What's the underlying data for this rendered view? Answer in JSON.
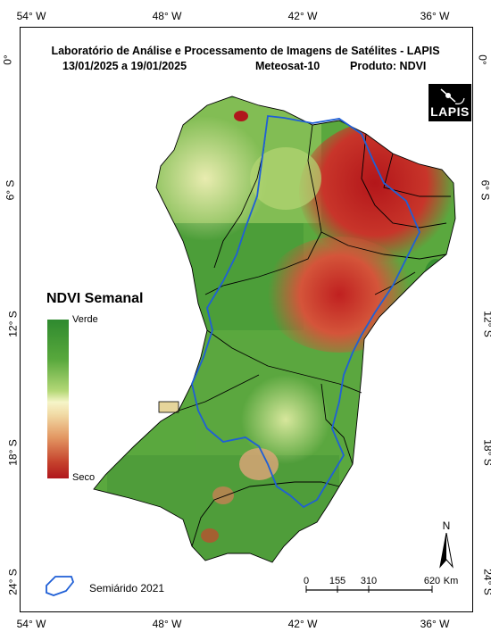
{
  "header": {
    "title_line1": "Laboratório de Análise e Processamento de Imagens de Satélites - LAPIS",
    "date_range": "13/01/2025  a  19/01/2025",
    "satellite": "Meteosat-10",
    "product": "Produto: NDVI"
  },
  "logo": {
    "text": "LAPIS"
  },
  "axes": {
    "longitude_top": [
      "54° W",
      "48° W",
      "42° W",
      "36° W"
    ],
    "longitude_bottom": [
      "54° W",
      "48° W",
      "42° W",
      "36° W"
    ],
    "latitude_left": [
      "0°",
      "6° S",
      "12° S",
      "18° S",
      "24° S"
    ],
    "latitude_right": [
      "0°",
      "6° S",
      "12° S",
      "18° S",
      "24° S"
    ]
  },
  "legend": {
    "title": "NDVI Semanal",
    "top_label": "Verde",
    "bottom_label": "Seco",
    "colors": [
      "#2f8a2f",
      "#b4d877",
      "#f6f5c8",
      "#e39863",
      "#b0161c"
    ]
  },
  "semiarid_legend": {
    "label": "Semiárido 2021",
    "color": "#1f5fd6"
  },
  "scale_bar": {
    "ticks": [
      "0",
      "155",
      "310",
      "620"
    ],
    "unit": "Km"
  },
  "north_arrow": {
    "label": "N"
  }
}
